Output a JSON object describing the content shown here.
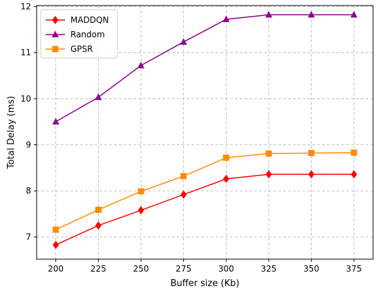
{
  "chart_data": {
    "type": "line",
    "xlabel": "Buffer size (Kb)",
    "ylabel": "Total Delay (ms)",
    "x": [
      200,
      225,
      250,
      275,
      300,
      325,
      350,
      375
    ],
    "x_ticks": [
      "200",
      "225",
      "250",
      "275",
      "300",
      "325",
      "350",
      "375"
    ],
    "y_ticks": [
      "7",
      "8",
      "9",
      "10",
      "11",
      "12"
    ],
    "xlim": [
      188.75,
      386.25
    ],
    "ylim": [
      6.52,
      12.02
    ],
    "grid": true,
    "legend_position": "top-left",
    "series": [
      {
        "name": "MADDQN",
        "color": "#ff0000",
        "marker": "diamond",
        "values": [
          6.83,
          7.25,
          7.58,
          7.92,
          8.26,
          8.36,
          8.36,
          8.36
        ]
      },
      {
        "name": "Random",
        "color": "#8b008b",
        "marker": "triangle",
        "values": [
          9.5,
          10.03,
          10.72,
          11.23,
          11.72,
          11.82,
          11.82,
          11.82
        ]
      },
      {
        "name": "GPSR",
        "color": "#ff8c00",
        "marker": "square",
        "values": [
          7.16,
          7.59,
          7.99,
          8.32,
          8.72,
          8.81,
          8.82,
          8.83
        ]
      }
    ]
  }
}
